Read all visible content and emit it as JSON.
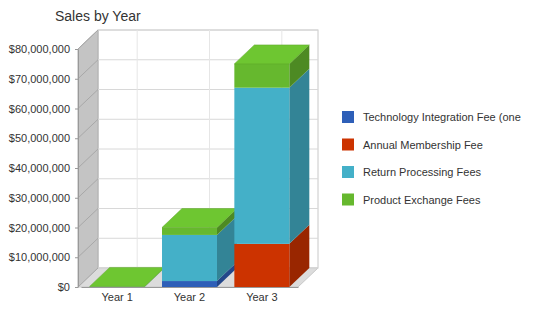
{
  "chart_data": {
    "type": "bar",
    "title": "Sales by Year",
    "categories": [
      "Year 1",
      "Year 2",
      "Year 3"
    ],
    "stacked": true,
    "grid": true,
    "legend": "right",
    "ylim": [
      0,
      80000000
    ],
    "yticks": [
      {
        "value": 0,
        "label": "$0"
      },
      {
        "value": 10000000,
        "label": "$10,000,000"
      },
      {
        "value": 20000000,
        "label": "$20,000,000"
      },
      {
        "value": 30000000,
        "label": "$30,000,000"
      },
      {
        "value": 40000000,
        "label": "$40,000,000"
      },
      {
        "value": 50000000,
        "label": "$50,000,000"
      },
      {
        "value": 60000000,
        "label": "$60,000,000"
      },
      {
        "value": 70000000,
        "label": "$70,000,000"
      },
      {
        "value": 80000000,
        "label": "$80,000,000"
      }
    ],
    "series": [
      {
        "name": "Technology Integration Fee (one",
        "color": "#2e5fb8",
        "values": [
          0,
          2000000,
          0
        ]
      },
      {
        "name": "Annual Membership Fee",
        "color": "#cc3300",
        "values": [
          0,
          0,
          14500000
        ]
      },
      {
        "name": "Return Processing Fees",
        "color": "#44b0c8",
        "values": [
          100000,
          15500000,
          52500000
        ]
      },
      {
        "name": "Product Exchange Fees",
        "color": "#66b82e",
        "values": [
          100000,
          2500000,
          8000000
        ]
      }
    ]
  }
}
